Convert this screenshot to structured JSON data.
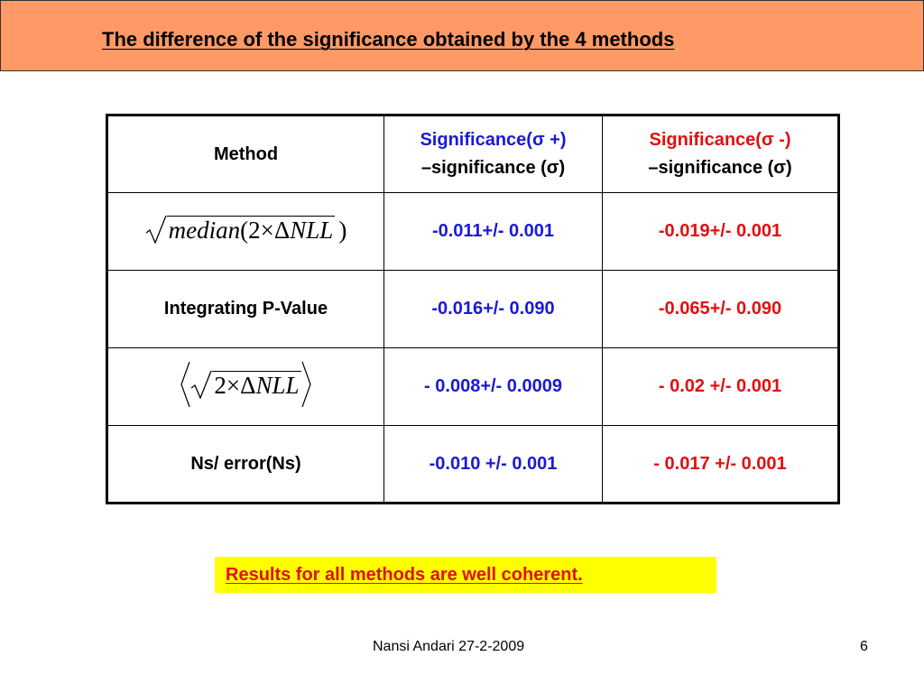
{
  "slide": {
    "title": "The difference of the significance obtained by the 4 methods",
    "conclusion": "Results for all methods are well coherent.",
    "footer_author": "Nansi Andari 27-2-2009",
    "page_number": "6"
  },
  "colors": {
    "title_bar": "#ff9966",
    "plus_column": "#1a1ad6",
    "minus_column": "#e01010",
    "highlight": "#ffff00"
  },
  "table": {
    "header": {
      "method": "Method",
      "plus_line1": "Significance(σ +)",
      "plus_line2": "–significance (σ)",
      "minus_line1": "Significance(σ -)",
      "minus_line2": "–significance (σ)"
    },
    "rows": [
      {
        "method_formula": {
          "fn": "median",
          "open": "(",
          "two": "2",
          "times": "×",
          "delta": "Δ",
          "nll": "NLL",
          "close": ")"
        },
        "plus": "-0.011+/- 0.001",
        "minus": "-0.019+/- 0.001"
      },
      {
        "method": "Integrating P-Value",
        "plus": "-0.016+/- 0.090",
        "minus": "-0.065+/- 0.090"
      },
      {
        "method_formula": {
          "two": "2",
          "times": "×",
          "delta": "Δ",
          "nll": "NLL"
        },
        "plus": "- 0.008+/- 0.0009",
        "minus": "- 0.02 +/- 0.001"
      },
      {
        "method": "Ns/ error(Ns)",
        "plus": "-0.010 +/- 0.001",
        "minus": "- 0.017 +/- 0.001"
      }
    ]
  }
}
